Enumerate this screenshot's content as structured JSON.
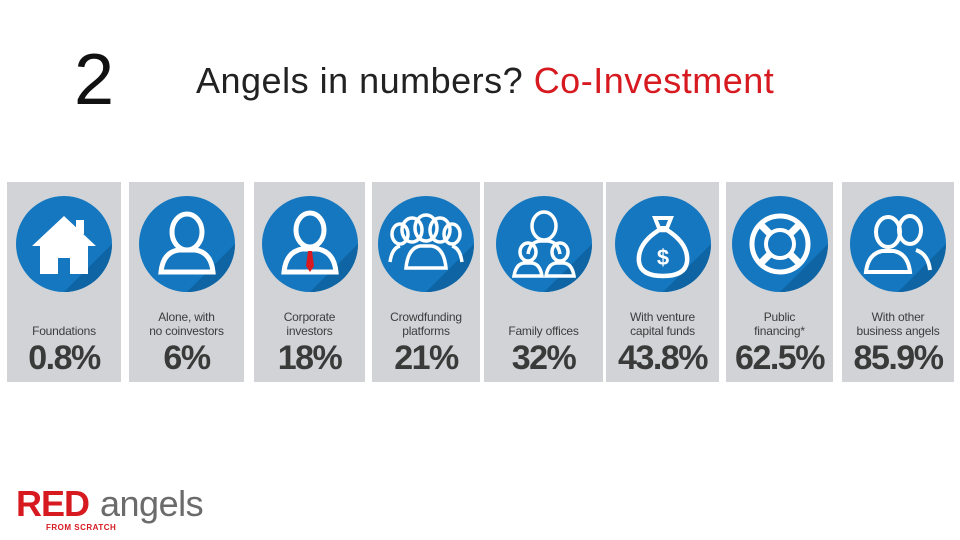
{
  "slide": {
    "number": "2",
    "title_main": "Angels in numbers? ",
    "title_accent": "Co-Investment",
    "accent_color": "#d71920"
  },
  "cards": [
    {
      "label": "Foundations",
      "value": "0.8%",
      "icon": "house-icon"
    },
    {
      "label": "Alone, with\nno coinvestors",
      "value": "6%",
      "icon": "single-person-icon"
    },
    {
      "label": "Corporate\ninvestors",
      "value": "18%",
      "icon": "person-with-tie-icon"
    },
    {
      "label": "Crowdfunding\nplatforms",
      "value": "21%",
      "icon": "crowd-icon"
    },
    {
      "label": "Family offices",
      "value": "32%",
      "icon": "family-icon"
    },
    {
      "label": "With venture\ncapital funds",
      "value": "43.8%",
      "icon": "money-bag-icon"
    },
    {
      "label": "Public\nfinancing*",
      "value": "62.5%",
      "icon": "lifebuoy-icon"
    },
    {
      "label": "With other\nbusiness angels",
      "value": "85.9%",
      "icon": "two-people-icon"
    }
  ],
  "colors": {
    "card_background": "#d1d3d6",
    "icon_circle": "#1477bf",
    "value_text": "#3a3a3a"
  },
  "logo": {
    "red_part": "RED",
    "grey_part": "angels",
    "subtitle": "FROM SCRATCH"
  }
}
